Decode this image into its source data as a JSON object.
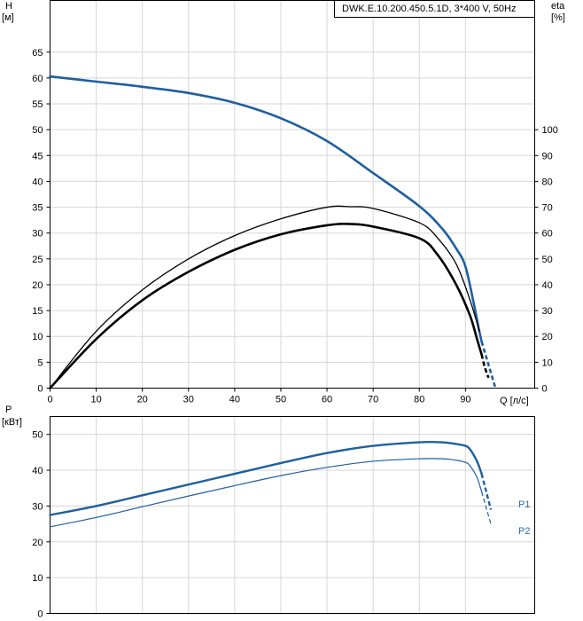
{
  "chart_data": [
    {
      "id": "head-efficiency",
      "type": "line",
      "title": "DWK.E.10.200.450.5.1D, 3*400 V, 50Hz",
      "xlabel": "Q [л/с]",
      "ylabel_name": "H",
      "ylabel_unit": "[м]",
      "y2label_name": "eta",
      "y2label_unit": "[%]",
      "xlim": [
        0,
        105
      ],
      "ylim": [
        0,
        75
      ],
      "y2lim": [
        0,
        150
      ],
      "x_ticks": [
        0,
        10,
        20,
        30,
        40,
        50,
        60,
        70,
        80,
        90
      ],
      "y_ticks": [
        0,
        5,
        10,
        15,
        20,
        25,
        30,
        35,
        40,
        45,
        50,
        55,
        60,
        65
      ],
      "y2_ticks": [
        0,
        10,
        20,
        30,
        40,
        50,
        60,
        70,
        80,
        90,
        100
      ],
      "grid": true,
      "series": [
        {
          "key": "head",
          "axis": "left",
          "color": "#1f5fa0",
          "width": 2.6,
          "points": [
            [
              0,
              60.3
            ],
            [
              10,
              59.3
            ],
            [
              20,
              58.3
            ],
            [
              30,
              57.1
            ],
            [
              40,
              55.2
            ],
            [
              50,
              52.2
            ],
            [
              60,
              47.8
            ],
            [
              70,
              41.6
            ],
            [
              80,
              35.2
            ],
            [
              85,
              30.8
            ],
            [
              88,
              27
            ],
            [
              90,
              23.5
            ],
            [
              92,
              15.5
            ],
            [
              93,
              11
            ],
            [
              93.5,
              9
            ]
          ],
          "dashed": [
            [
              93.5,
              9
            ],
            [
              94.5,
              6
            ],
            [
              95.5,
              3
            ],
            [
              96.5,
              0
            ]
          ]
        },
        {
          "key": "eta1",
          "axis": "right",
          "color": "#000000",
          "width": 1.3,
          "points": [
            [
              0,
              0
            ],
            [
              10,
              22
            ],
            [
              20,
              38
            ],
            [
              30,
              50
            ],
            [
              40,
              59
            ],
            [
              50,
              65.5
            ],
            [
              60,
              70
            ],
            [
              65,
              70.2
            ],
            [
              70,
              69.5
            ],
            [
              80,
              64
            ],
            [
              84,
              58
            ],
            [
              88,
              48
            ],
            [
              91,
              34
            ],
            [
              93,
              22
            ]
          ],
          "dashed": []
        },
        {
          "key": "eta2",
          "axis": "right",
          "color": "#000000",
          "width": 2.6,
          "points": [
            [
              0,
              0
            ],
            [
              10,
              19
            ],
            [
              20,
              34
            ],
            [
              30,
              45
            ],
            [
              40,
              53.5
            ],
            [
              50,
              59.5
            ],
            [
              60,
              63
            ],
            [
              65,
              63.5
            ],
            [
              70,
              62.5
            ],
            [
              80,
              58
            ],
            [
              84,
              51.5
            ],
            [
              88,
              40
            ],
            [
              91,
              28
            ],
            [
              92.5,
              19
            ],
            [
              93.5,
              13
            ]
          ],
          "dashed": [
            [
              93.5,
              13
            ],
            [
              94.2,
              8
            ],
            [
              95,
              4
            ]
          ]
        }
      ]
    },
    {
      "id": "power",
      "type": "line",
      "ylabel_name": "P",
      "ylabel_unit": "[кВт]",
      "xlim": [
        0,
        105
      ],
      "ylim": [
        0,
        55
      ],
      "y_ticks": [
        0,
        10,
        20,
        30,
        40,
        50
      ],
      "grid": true,
      "series": [
        {
          "name": "P1",
          "color": "#1f5fa0",
          "width": 2.4,
          "points": [
            [
              0,
              27.5
            ],
            [
              10,
              30
            ],
            [
              20,
              33
            ],
            [
              30,
              36
            ],
            [
              40,
              39
            ],
            [
              50,
              42
            ],
            [
              60,
              44.8
            ],
            [
              70,
              46.8
            ],
            [
              80,
              47.8
            ],
            [
              85,
              47.8
            ],
            [
              88,
              47.3
            ],
            [
              90,
              46.8
            ],
            [
              91,
              45.8
            ],
            [
              92.5,
              42.5
            ],
            [
              93.5,
              39
            ]
          ],
          "dashed": [
            [
              93.5,
              39
            ],
            [
              94.5,
              34
            ],
            [
              95.5,
              29
            ]
          ]
        },
        {
          "name": "P2",
          "color": "#1f5fa0",
          "width": 1.2,
          "points": [
            [
              0,
              24.2
            ],
            [
              10,
              26.8
            ],
            [
              20,
              29.8
            ],
            [
              30,
              32.8
            ],
            [
              40,
              35.7
            ],
            [
              50,
              38.5
            ],
            [
              60,
              40.8
            ],
            [
              70,
              42.5
            ],
            [
              80,
              43.2
            ],
            [
              85,
              43.2
            ],
            [
              88,
              42.8
            ],
            [
              90,
              42.2
            ],
            [
              91,
              41.2
            ],
            [
              92.5,
              38
            ],
            [
              93.5,
              34
            ]
          ],
          "dashed": [
            [
              93.5,
              34
            ],
            [
              94.5,
              29.5
            ],
            [
              95.5,
              25
            ]
          ]
        }
      ]
    }
  ]
}
